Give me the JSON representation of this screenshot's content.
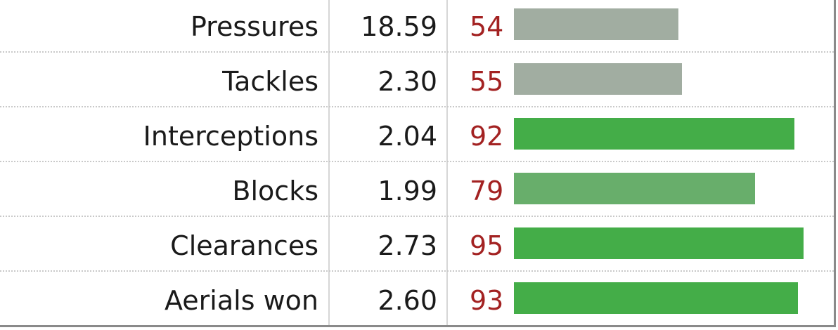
{
  "chart_data": {
    "type": "bar",
    "categories": [
      "Pressures",
      "Tackles",
      "Interceptions",
      "Blocks",
      "Clearances",
      "Aerials won"
    ],
    "per90": [
      "18.59",
      "2.30",
      "2.04",
      "1.99",
      "2.73",
      "2.60"
    ],
    "percentiles": [
      54,
      55,
      92,
      79,
      95,
      93
    ],
    "xlim": [
      0,
      100
    ],
    "bar_colors": [
      "#a1ada1",
      "#a1ada1",
      "#44ad48",
      "#68ae6b",
      "#44ad48",
      "#44ad48"
    ],
    "percentile_text_color": "#a32222"
  }
}
